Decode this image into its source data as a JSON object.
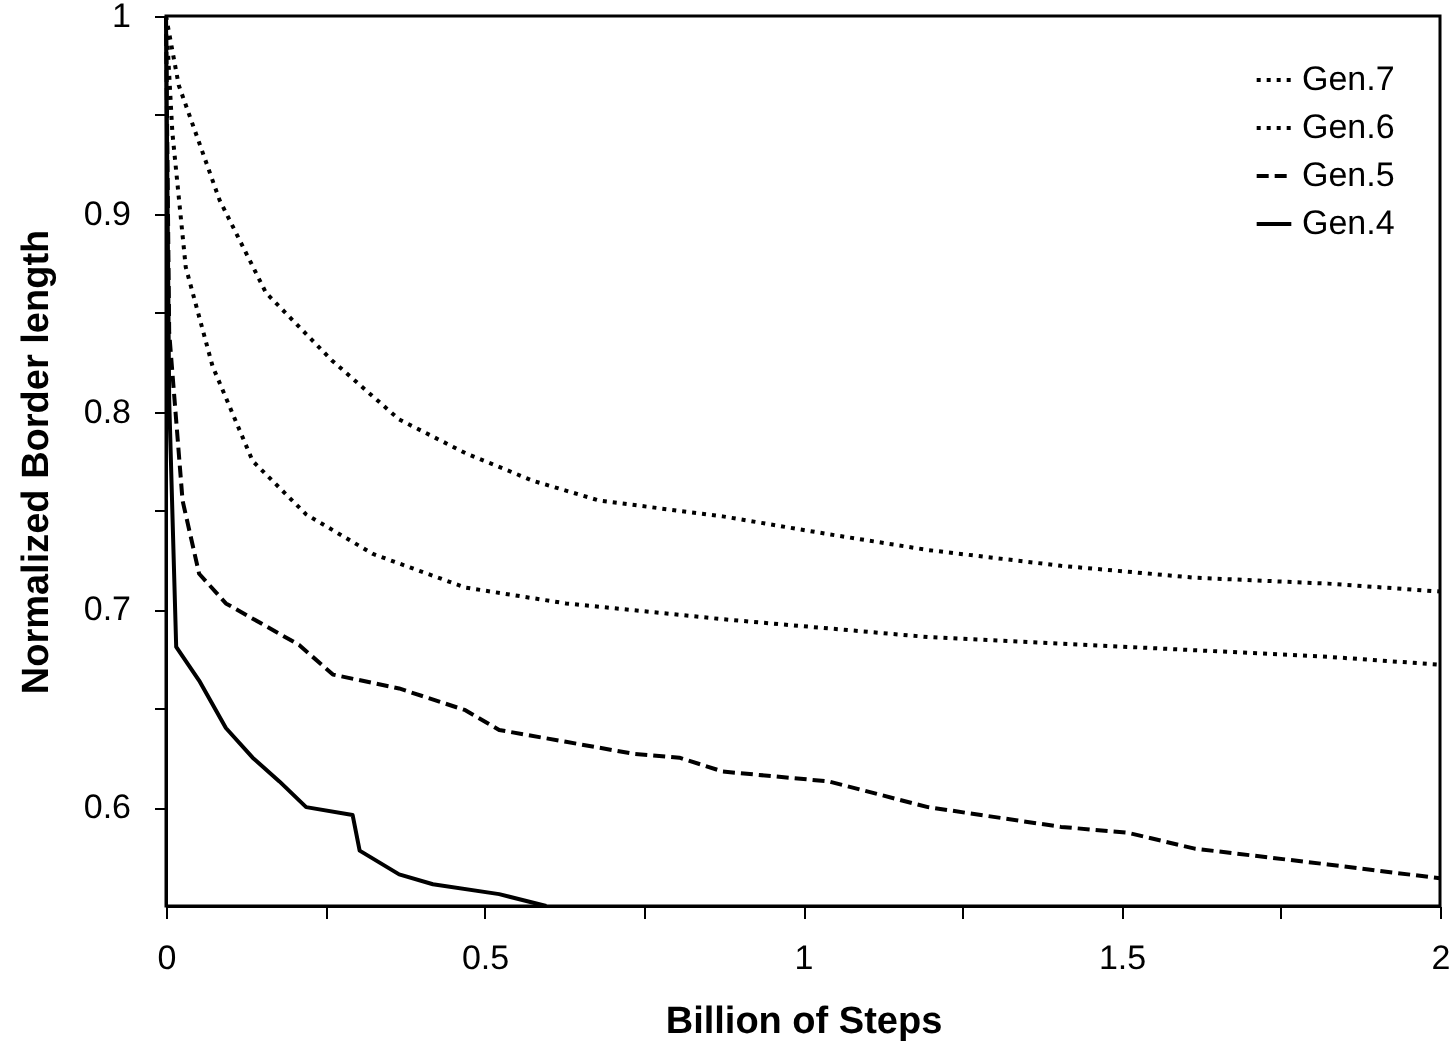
{
  "chart_data": {
    "type": "line",
    "xlabel": "Billion of Steps",
    "ylabel": "Normalized Border length",
    "xlim": [
      0,
      2
    ],
    "ylim": [
      0.55,
      1
    ],
    "xticks": [
      0,
      {
        "value": 0.25,
        "label": null
      },
      0.5,
      {
        "value": 0.75,
        "label": null
      },
      1,
      {
        "value": 1.25,
        "label": null
      },
      1.5,
      {
        "value": 1.75,
        "label": null
      },
      2
    ],
    "yticks": [
      {
        "value": 0.6,
        "label": "0.6"
      },
      {
        "value": 0.65,
        "label": null
      },
      {
        "value": 0.7,
        "label": "0.7"
      },
      {
        "value": 0.75,
        "label": null
      },
      {
        "value": 0.8,
        "label": "0.8"
      },
      {
        "value": 0.85,
        "label": null
      },
      {
        "value": 0.9,
        "label": "0.9"
      },
      {
        "value": 0.95,
        "label": null
      },
      1
    ],
    "grid": false,
    "legend": "top right",
    "marker": "none",
    "series": [
      {
        "name": "Gen.7",
        "color": "#000000",
        "line_style": "dotted",
        "x": [
          0,
          0.02,
          0.084,
          0.157,
          0.26,
          0.366,
          0.47,
          0.576,
          0.68,
          0.874,
          1.04,
          1.196,
          1.405,
          1.615,
          1.824,
          2
        ],
        "values": [
          1,
          0.965,
          0.907,
          0.86,
          0.826,
          0.796,
          0.779,
          0.765,
          0.755,
          0.747,
          0.738,
          0.73,
          0.722,
          0.716,
          0.713,
          0.709
        ]
      },
      {
        "name": "Gen.6",
        "color": "#000000",
        "line_style": "dotted",
        "x": [
          0,
          0.01,
          0.031,
          0.073,
          0.136,
          0.22,
          0.325,
          0.47,
          0.628,
          0.874,
          1.196,
          1.51,
          1.824,
          2
        ],
        "values": [
          1,
          0.941,
          0.873,
          0.823,
          0.775,
          0.748,
          0.728,
          0.711,
          0.703,
          0.695,
          0.686,
          0.681,
          0.676,
          0.672
        ]
      },
      {
        "name": "Gen.5",
        "color": "#000000",
        "line_style": "dashed",
        "x": [
          0,
          0.005,
          0.026,
          0.052,
          0.094,
          0.209,
          0.262,
          0.366,
          0.47,
          0.523,
          0.628,
          0.733,
          0.806,
          0.874,
          1.04,
          1.196,
          1.405,
          1.51,
          1.615,
          1.824,
          2
        ],
        "values": [
          1,
          0.84,
          0.755,
          0.718,
          0.703,
          0.682,
          0.667,
          0.66,
          0.649,
          0.639,
          0.633,
          0.627,
          0.625,
          0.618,
          0.613,
          0.6,
          0.59,
          0.587,
          0.579,
          0.571,
          0.564
        ]
      },
      {
        "name": "Gen.4",
        "color": "#000000",
        "line_style": "solid",
        "x": [
          0,
          0.005,
          0.016,
          0.052,
          0.094,
          0.136,
          0.178,
          0.22,
          0.293,
          0.304,
          0.366,
          0.419,
          0.523,
          0.597
        ],
        "values": [
          1,
          0.806,
          0.681,
          0.664,
          0.64,
          0.625,
          0.613,
          0.6,
          0.596,
          0.578,
          0.566,
          0.561,
          0.556,
          0.55
        ]
      }
    ]
  }
}
